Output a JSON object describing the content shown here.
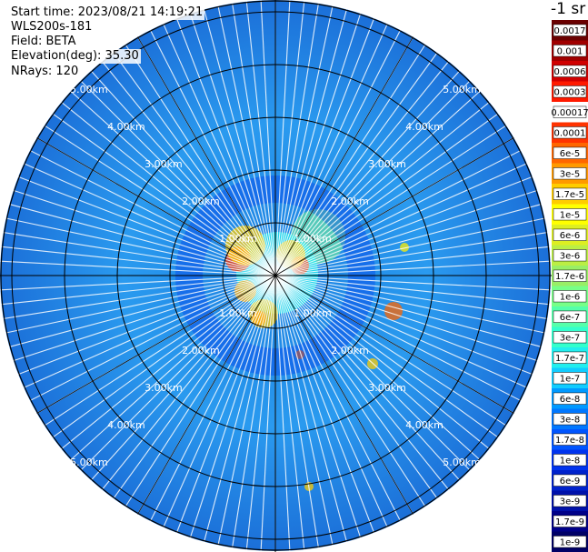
{
  "header": {
    "start_time": "Start time: 2023/08/21 14:19:21",
    "instrument": "WLS200s-181",
    "field": "Field: BETA",
    "elevation": "Elevation(deg): 35.30",
    "nrays": "NRays: 120"
  },
  "units": "-1 sr",
  "range_rings": [
    {
      "label": "1.00km"
    },
    {
      "label": "2.00km"
    },
    {
      "label": "3.00km"
    },
    {
      "label": "4.00km"
    },
    {
      "label": "5.00km"
    }
  ],
  "colorbar": {
    "labels": [
      "0.0017",
      "0.001",
      "0.0006",
      "0.0003",
      "0.00017",
      "0.0001",
      "6e-5",
      "3e-5",
      "1.7e-5",
      "1e-5",
      "6e-6",
      "3e-6",
      "1.7e-6",
      "1e-6",
      "6e-7",
      "3e-7",
      "1.7e-7",
      "1e-7",
      "6e-8",
      "3e-8",
      "1.7e-8",
      "1e-8",
      "6e-9",
      "3e-9",
      "1.7e-9",
      "1e-9"
    ],
    "colors": [
      "#6a0000",
      "#a00000",
      "#d00000",
      "#ff1a00",
      "#ffffff",
      "#ff3300",
      "#ff6600",
      "#ff9900",
      "#ffcc00",
      "#ffff00",
      "#ddee22",
      "#bbee44",
      "#99ee66",
      "#77ff88",
      "#55ffaa",
      "#33ffcc",
      "#22eeee",
      "#11ccff",
      "#0099ff",
      "#0077ff",
      "#0055ff",
      "#0033ee",
      "#0022cc",
      "#0011aa",
      "#000088",
      "#000066"
    ]
  }
}
